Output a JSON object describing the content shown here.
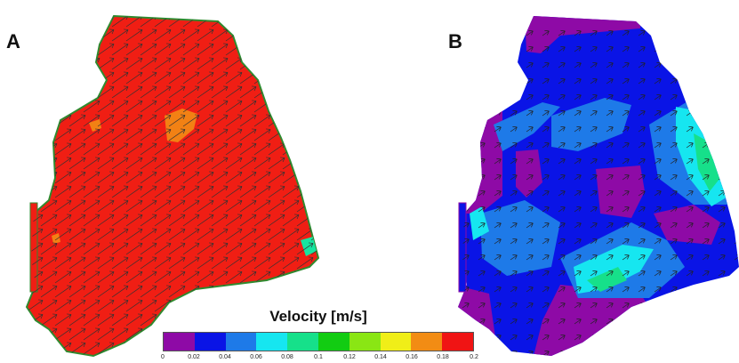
{
  "panels": [
    {
      "label": "A"
    },
    {
      "label": "B"
    }
  ],
  "legend": {
    "title": "Velocity [m/s]",
    "ticks": [
      "0",
      "0.02",
      "0.04",
      "0.06",
      "0.08",
      "0.1",
      "0.12",
      "0.14",
      "0.16",
      "0.18",
      "0.2"
    ],
    "colors": [
      "#8e0aa6",
      "#0a14e6",
      "#1e7ae8",
      "#16e6f0",
      "#16e08a",
      "#12cc12",
      "#8ae614",
      "#f0ee18",
      "#f28c14",
      "#f01414"
    ]
  },
  "colors": {
    "outline": "#2f8a2f",
    "arrow_a": "#333333",
    "arrow_b": "#222222"
  }
}
